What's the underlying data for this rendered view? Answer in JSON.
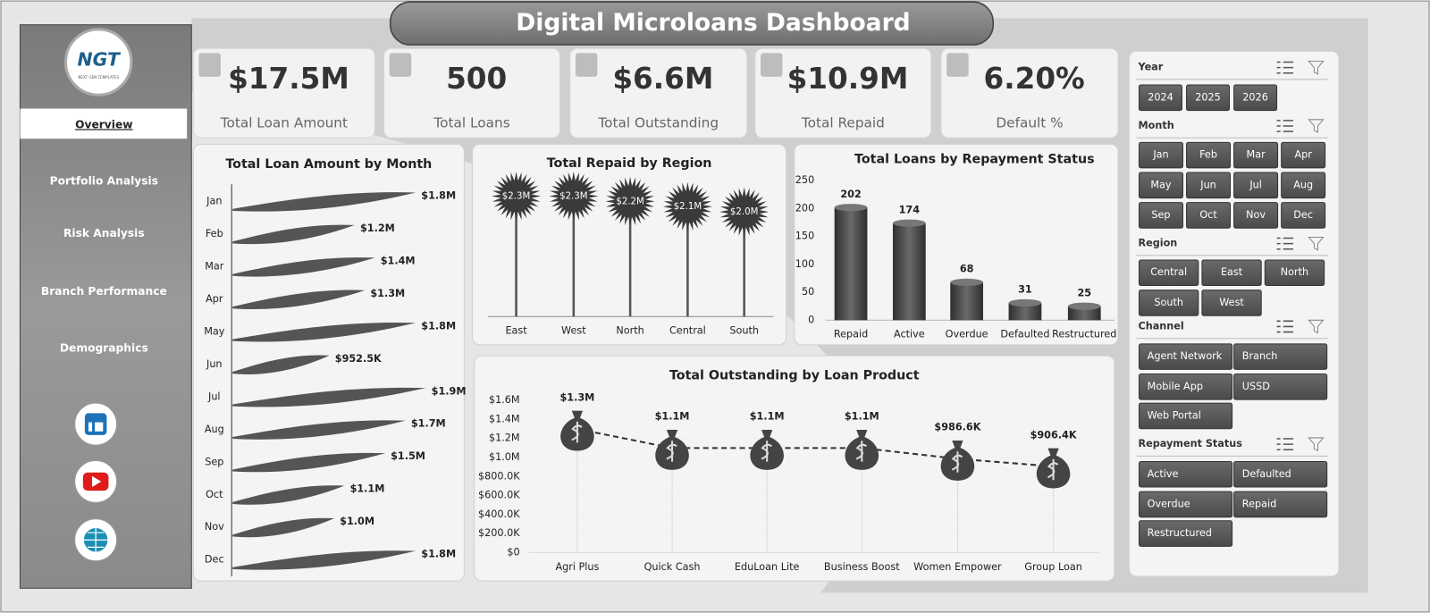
{
  "header": {
    "title": "Digital Microloans Dashboard"
  },
  "sidebar": {
    "logo": "NGT",
    "logo_caption": "NEXT GEN TEMPLATES",
    "nav": [
      "Overview",
      "Portfolio Analysis",
      "Risk Analysis",
      "Branch Performance",
      "Demographics"
    ]
  },
  "kpis": [
    {
      "value": "$17.5M",
      "label": "Total Loan Amount"
    },
    {
      "value": "500",
      "label": "Total Loans"
    },
    {
      "value": "$6.6M",
      "label": "Total Outstanding"
    },
    {
      "value": "$10.9M",
      "label": "Total Repaid"
    },
    {
      "value": "6.20%",
      "label": "Default %"
    }
  ],
  "chart_data": [
    {
      "type": "bar",
      "orientation": "horizontal",
      "title": "Total Loan Amount by Month",
      "categories": [
        "Jan",
        "Feb",
        "Mar",
        "Apr",
        "May",
        "Jun",
        "Jul",
        "Aug",
        "Sep",
        "Oct",
        "Nov",
        "Dec"
      ],
      "values": [
        1800000,
        1200000,
        1400000,
        1300000,
        1800000,
        952500,
        1900000,
        1700000,
        1500000,
        1100000,
        1000000,
        1800000
      ],
      "value_labels": [
        "$1.8M",
        "$1.2M",
        "$1.4M",
        "$1.3M",
        "$1.8M",
        "$952.5K",
        "$1.9M",
        "$1.7M",
        "$1.5M",
        "$1.1M",
        "$1.0M",
        "$1.8M"
      ],
      "color": "#555555"
    },
    {
      "type": "lollipop",
      "title": "Total Repaid by Region",
      "categories": [
        "East",
        "West",
        "North",
        "Central",
        "South"
      ],
      "values": [
        2300000,
        2300000,
        2200000,
        2100000,
        2000000
      ],
      "value_labels": [
        "$2.3M",
        "$2.3M",
        "$2.2M",
        "$2.1M",
        "$2.0M"
      ],
      "color": "#3a3a3a"
    },
    {
      "type": "bar",
      "orientation": "vertical",
      "title": "Total Loans by Repayment Status",
      "categories": [
        "Repaid",
        "Active",
        "Overdue",
        "Defaulted",
        "Restructured"
      ],
      "values": [
        202,
        174,
        68,
        31,
        25
      ],
      "ylim": [
        0,
        250
      ],
      "yticks": [
        0,
        50,
        100,
        150,
        200,
        250
      ],
      "color": "#4a4a4a"
    },
    {
      "type": "line",
      "title": "Total Outstanding by Loan Product",
      "categories": [
        "Agri Plus",
        "Quick Cash",
        "EduLoan Lite",
        "Business Boost",
        "Women Empower",
        "Group Loan"
      ],
      "values": [
        1300000,
        1100000,
        1100000,
        1100000,
        986600,
        906400
      ],
      "value_labels": [
        "$1.3M",
        "$1.1M",
        "$1.1M",
        "$1.1M",
        "$986.6K",
        "$906.4K"
      ],
      "ylim": [
        0,
        1600000
      ],
      "yticks": [
        {
          "value": 0,
          "label": "$0"
        },
        {
          "value": 200000,
          "label": "$200.0K"
        },
        {
          "value": 400000,
          "label": "$400.0K"
        },
        {
          "value": 600000,
          "label": "$600.0K"
        },
        {
          "value": 800000,
          "label": "$800.0K"
        },
        {
          "value": 1000000,
          "label": "$1.0M"
        },
        {
          "value": 1200000,
          "label": "$1.2M"
        },
        {
          "value": 1400000,
          "label": "$1.4M"
        },
        {
          "value": 1600000,
          "label": "$1.6M"
        }
      ],
      "color": "#444444"
    }
  ],
  "filters": [
    {
      "title": "Year",
      "options": [
        "2024",
        "2025",
        "2026"
      ]
    },
    {
      "title": "Month",
      "options": [
        "Jan",
        "Feb",
        "Mar",
        "Apr",
        "May",
        "Jun",
        "Jul",
        "Aug",
        "Sep",
        "Oct",
        "Nov",
        "Dec"
      ]
    },
    {
      "title": "Region",
      "options": [
        "Central",
        "East",
        "North",
        "South",
        "West"
      ]
    },
    {
      "title": "Channel",
      "options": [
        "Agent Network",
        "Branch",
        "Mobile App",
        "USSD",
        "Web Portal"
      ]
    },
    {
      "title": "Repayment Status",
      "options": [
        "Active",
        "Defaulted",
        "Overdue",
        "Repaid",
        "Restructured"
      ]
    }
  ]
}
